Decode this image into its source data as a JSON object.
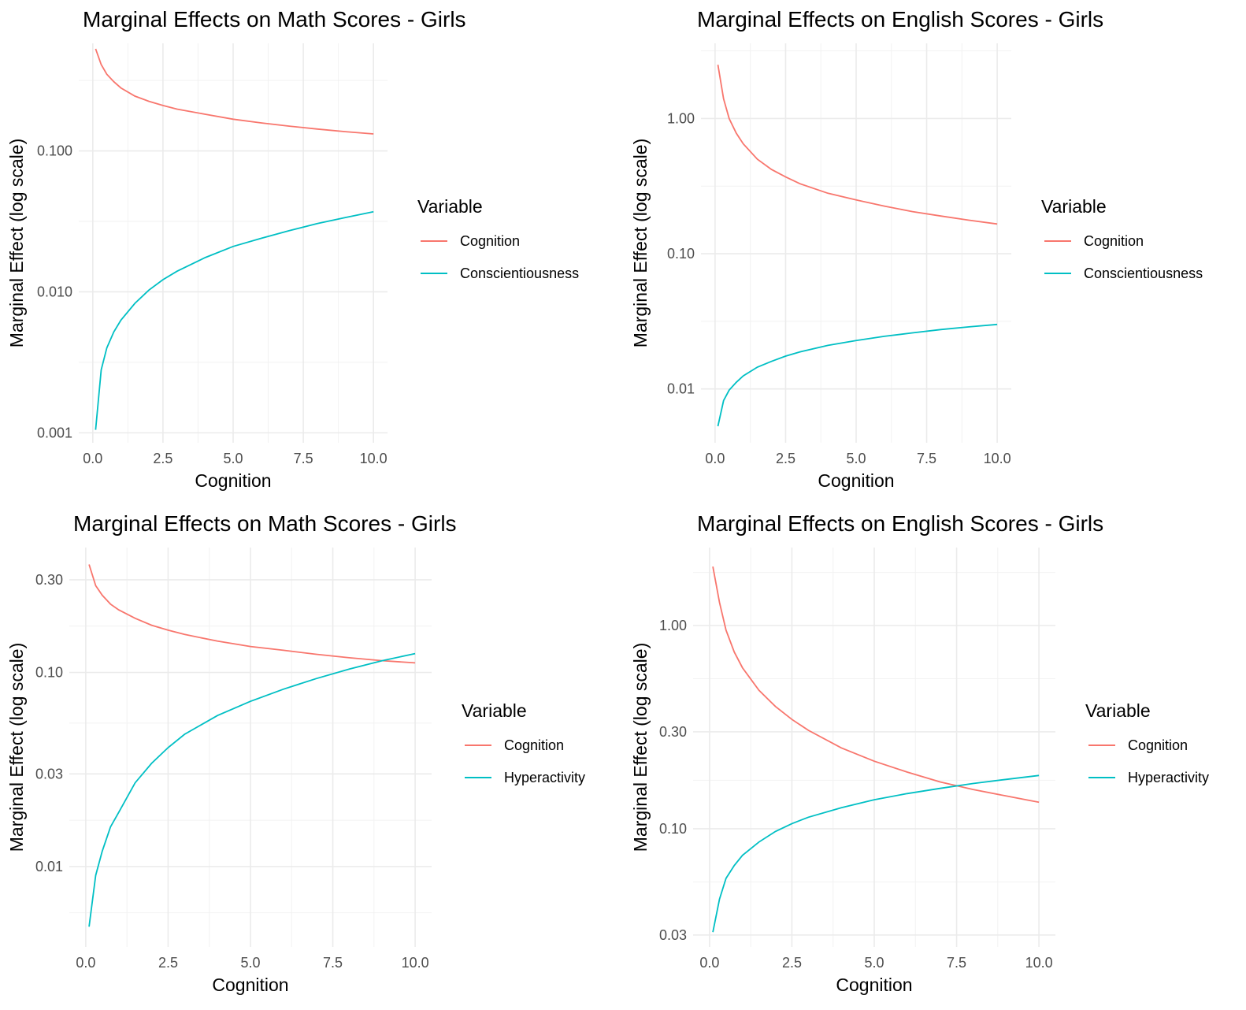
{
  "chart_data": [
    {
      "type": "line",
      "title": "Marginal Effects on Math Scores - Girls",
      "xlabel": "Cognition",
      "ylabel": "Marginal Effect (log scale)",
      "y_scale": "log10",
      "grid": true,
      "legend_position": "right",
      "legend_title": "Variable",
      "xlim": [
        -0.5,
        10.5
      ],
      "ylim": [
        0.00085,
        0.58
      ],
      "x_ticks": [
        0.0,
        2.5,
        5.0,
        7.5,
        10.0
      ],
      "x_tick_labels": [
        "0.0",
        "2.5",
        "5.0",
        "7.5",
        "10.0"
      ],
      "y_ticks": [
        0.001,
        0.01,
        0.1
      ],
      "y_tick_labels": [
        "0.001",
        "0.010",
        "0.100"
      ],
      "x": [
        0.1,
        0.3,
        0.5,
        0.75,
        1.0,
        1.5,
        2.0,
        2.5,
        3.0,
        4.0,
        5.0,
        6.0,
        7.0,
        8.0,
        9.0,
        10.0
      ],
      "series": [
        {
          "name": "Cognition",
          "color": "#F8766D",
          "values": [
            0.53,
            0.41,
            0.35,
            0.31,
            0.28,
            0.245,
            0.225,
            0.21,
            0.198,
            0.182,
            0.168,
            0.158,
            0.15,
            0.143,
            0.137,
            0.132
          ]
        },
        {
          "name": "Conscientiousness",
          "color": "#00BFC4",
          "values": [
            0.00105,
            0.0028,
            0.004,
            0.0052,
            0.0063,
            0.0083,
            0.0103,
            0.0122,
            0.014,
            0.0175,
            0.021,
            0.024,
            0.0272,
            0.0305,
            0.0337,
            0.037
          ]
        }
      ]
    },
    {
      "type": "line",
      "title": "Marginal Effects on English Scores - Girls",
      "xlabel": "Cognition",
      "ylabel": "Marginal Effect (log scale)",
      "y_scale": "log10",
      "grid": true,
      "legend_position": "right",
      "legend_title": "Variable",
      "xlim": [
        -0.5,
        10.5
      ],
      "ylim": [
        0.004,
        3.6
      ],
      "x_ticks": [
        0.0,
        2.5,
        5.0,
        7.5,
        10.0
      ],
      "x_tick_labels": [
        "0.0",
        "2.5",
        "5.0",
        "7.5",
        "10.0"
      ],
      "y_ticks": [
        0.01,
        0.1,
        1.0
      ],
      "y_tick_labels": [
        "0.01",
        "0.10",
        "1.00"
      ],
      "x": [
        0.1,
        0.3,
        0.5,
        0.75,
        1.0,
        1.5,
        2.0,
        2.5,
        3.0,
        4.0,
        5.0,
        6.0,
        7.0,
        8.0,
        9.0,
        10.0
      ],
      "series": [
        {
          "name": "Cognition",
          "color": "#F8766D",
          "values": [
            2.5,
            1.4,
            1.0,
            0.78,
            0.65,
            0.5,
            0.42,
            0.37,
            0.33,
            0.28,
            0.25,
            0.225,
            0.205,
            0.19,
            0.177,
            0.166
          ]
        },
        {
          "name": "Conscientiousness",
          "color": "#00BFC4",
          "values": [
            0.0053,
            0.0082,
            0.0098,
            0.0112,
            0.0125,
            0.0145,
            0.016,
            0.0175,
            0.0188,
            0.021,
            0.0228,
            0.0245,
            0.026,
            0.0275,
            0.0288,
            0.03
          ]
        }
      ]
    },
    {
      "type": "line",
      "title": "Marginal Effects on Math Scores - Girls",
      "xlabel": "Cognition",
      "ylabel": "Marginal Effect (log scale)",
      "y_scale": "log10",
      "grid": true,
      "legend_position": "right",
      "legend_title": "Variable",
      "xlim": [
        -0.5,
        10.5
      ],
      "ylim": [
        0.00385,
        0.44
      ],
      "x_ticks": [
        0.0,
        2.5,
        5.0,
        7.5,
        10.0
      ],
      "x_tick_labels": [
        "0.0",
        "2.5",
        "5.0",
        "7.5",
        "10.0"
      ],
      "y_ticks": [
        0.01,
        0.03,
        0.1,
        0.3
      ],
      "y_tick_labels": [
        "0.01",
        "0.03",
        "0.10",
        "0.30"
      ],
      "x": [
        0.1,
        0.3,
        0.5,
        0.75,
        1.0,
        1.5,
        2.0,
        2.5,
        3.0,
        4.0,
        5.0,
        6.0,
        7.0,
        8.0,
        9.0,
        10.0
      ],
      "series": [
        {
          "name": "Cognition",
          "color": "#F8766D",
          "values": [
            0.36,
            0.28,
            0.25,
            0.225,
            0.21,
            0.19,
            0.175,
            0.165,
            0.157,
            0.145,
            0.136,
            0.13,
            0.124,
            0.119,
            0.115,
            0.112
          ]
        },
        {
          "name": "Hyperactivity",
          "color": "#00BFC4",
          "values": [
            0.0049,
            0.009,
            0.012,
            0.016,
            0.019,
            0.027,
            0.034,
            0.041,
            0.048,
            0.06,
            0.071,
            0.082,
            0.093,
            0.104,
            0.115,
            0.125
          ]
        }
      ]
    },
    {
      "type": "line",
      "title": "Marginal Effects on English Scores - Girls",
      "xlabel": "Cognition",
      "ylabel": "Marginal Effect (log scale)",
      "y_scale": "log10",
      "grid": true,
      "legend_position": "right",
      "legend_title": "Variable",
      "xlim": [
        -0.5,
        10.5
      ],
      "ylim": [
        0.0262,
        2.42
      ],
      "x_ticks": [
        0.0,
        2.5,
        5.0,
        7.5,
        10.0
      ],
      "x_tick_labels": [
        "0.0",
        "2.5",
        "5.0",
        "7.5",
        "10.0"
      ],
      "y_ticks": [
        0.03,
        0.1,
        0.3,
        1.0
      ],
      "y_tick_labels": [
        "0.03",
        "0.10",
        "0.30",
        "1.00"
      ],
      "x": [
        0.1,
        0.3,
        0.5,
        0.75,
        1.0,
        1.5,
        2.0,
        2.5,
        3.0,
        4.0,
        5.0,
        6.0,
        7.0,
        8.0,
        9.0,
        10.0
      ],
      "series": [
        {
          "name": "Cognition",
          "color": "#F8766D",
          "values": [
            1.95,
            1.3,
            0.95,
            0.74,
            0.62,
            0.48,
            0.4,
            0.345,
            0.305,
            0.25,
            0.215,
            0.19,
            0.17,
            0.156,
            0.145,
            0.135
          ]
        },
        {
          "name": "Hyperactivity",
          "color": "#00BFC4",
          "values": [
            0.031,
            0.045,
            0.057,
            0.066,
            0.074,
            0.086,
            0.097,
            0.106,
            0.114,
            0.127,
            0.139,
            0.149,
            0.158,
            0.167,
            0.175,
            0.183
          ]
        }
      ]
    }
  ]
}
